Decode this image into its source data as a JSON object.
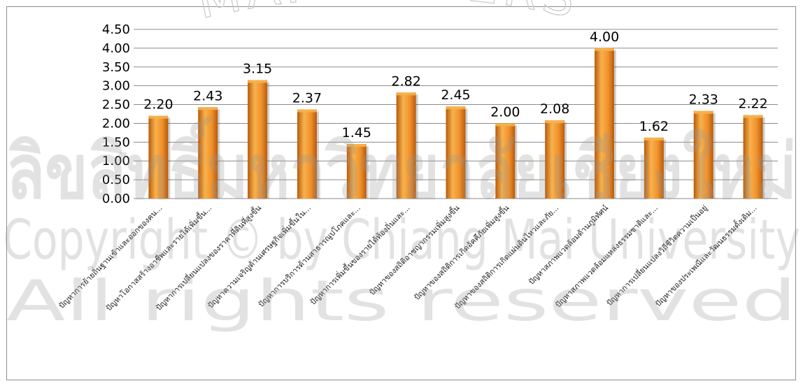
{
  "chart_data": {
    "type": "bar",
    "categories": [
      "ปัญหาการย้ายถิ่นฐานเข้าและออกของคน...",
      "ปัญหาโอกาสสร้างอาชีพและรายได้เพิ่มขึ้น...",
      "ปัญหาการเปลี่ยนแปลงของราคาที่ดินที่สูงขึ้น",
      "ปัญหาความเจริญด้านเศรษฐกิจเพิ่มขึ้นใน...",
      "ปัญหาการบริการด้านสาธารณูปโภคและ...",
      "ปัญหาการเพิ่มขึ้นของรายได้ท้องถิ่นและ...",
      "ปัญหาของสถิติอาชญากรรมเพิ่มสูงขึ้น",
      "ปัญหาของสถิติการเกิดอัคคีภัยเพิ่มสูงขึ้น",
      "ปัญหาของสถิติการเกิดแผ่นดินไหวและภัย...",
      "ปัญหาสภาพแวดล้อมด้านภูมิทัศน์",
      "ปัญหาสภาพแวดล้อมแหล่งธรรมชาติและ...",
      "ปัญหาการเปลี่ยนแปลงวิถีชีวิตความเป็นอยู่",
      "ปัญหาของประเพณีและวัฒนธรรมดั้งเดิม..."
    ],
    "values": [
      2.2,
      2.43,
      3.15,
      2.37,
      1.45,
      2.82,
      2.45,
      2.0,
      2.08,
      4.0,
      1.62,
      2.33,
      2.22
    ],
    "value_labels": [
      "2.20",
      "2.43",
      "3.15",
      "2.37",
      "1.45",
      "2.82",
      "2.45",
      "2.00",
      "2.08",
      "4.00",
      "1.62",
      "2.33",
      "2.22"
    ],
    "y_ticks": [
      "0.00",
      "0.50",
      "1.00",
      "1.50",
      "2.00",
      "2.50",
      "3.00",
      "3.50",
      "4.00",
      "4.50"
    ],
    "ylim": [
      0,
      4.5
    ],
    "grid": true,
    "title": "",
    "xlabel": "",
    "ylabel": "",
    "colors": {
      "bar_light": "#f7b24d",
      "bar_mid": "#f0902a",
      "bar_dark": "#b85a0c",
      "grid": "#8c8c8c",
      "text": "#000000"
    }
  },
  "watermark": {
    "arc_text": "MAI UNIVERS",
    "thai_line": "ลิขสิทธิ์มหาวิทยาลัยเชียงใหม่",
    "copyright_line": "Copyright © by Chiang Mai University",
    "rights_line": "All rights reserved"
  }
}
